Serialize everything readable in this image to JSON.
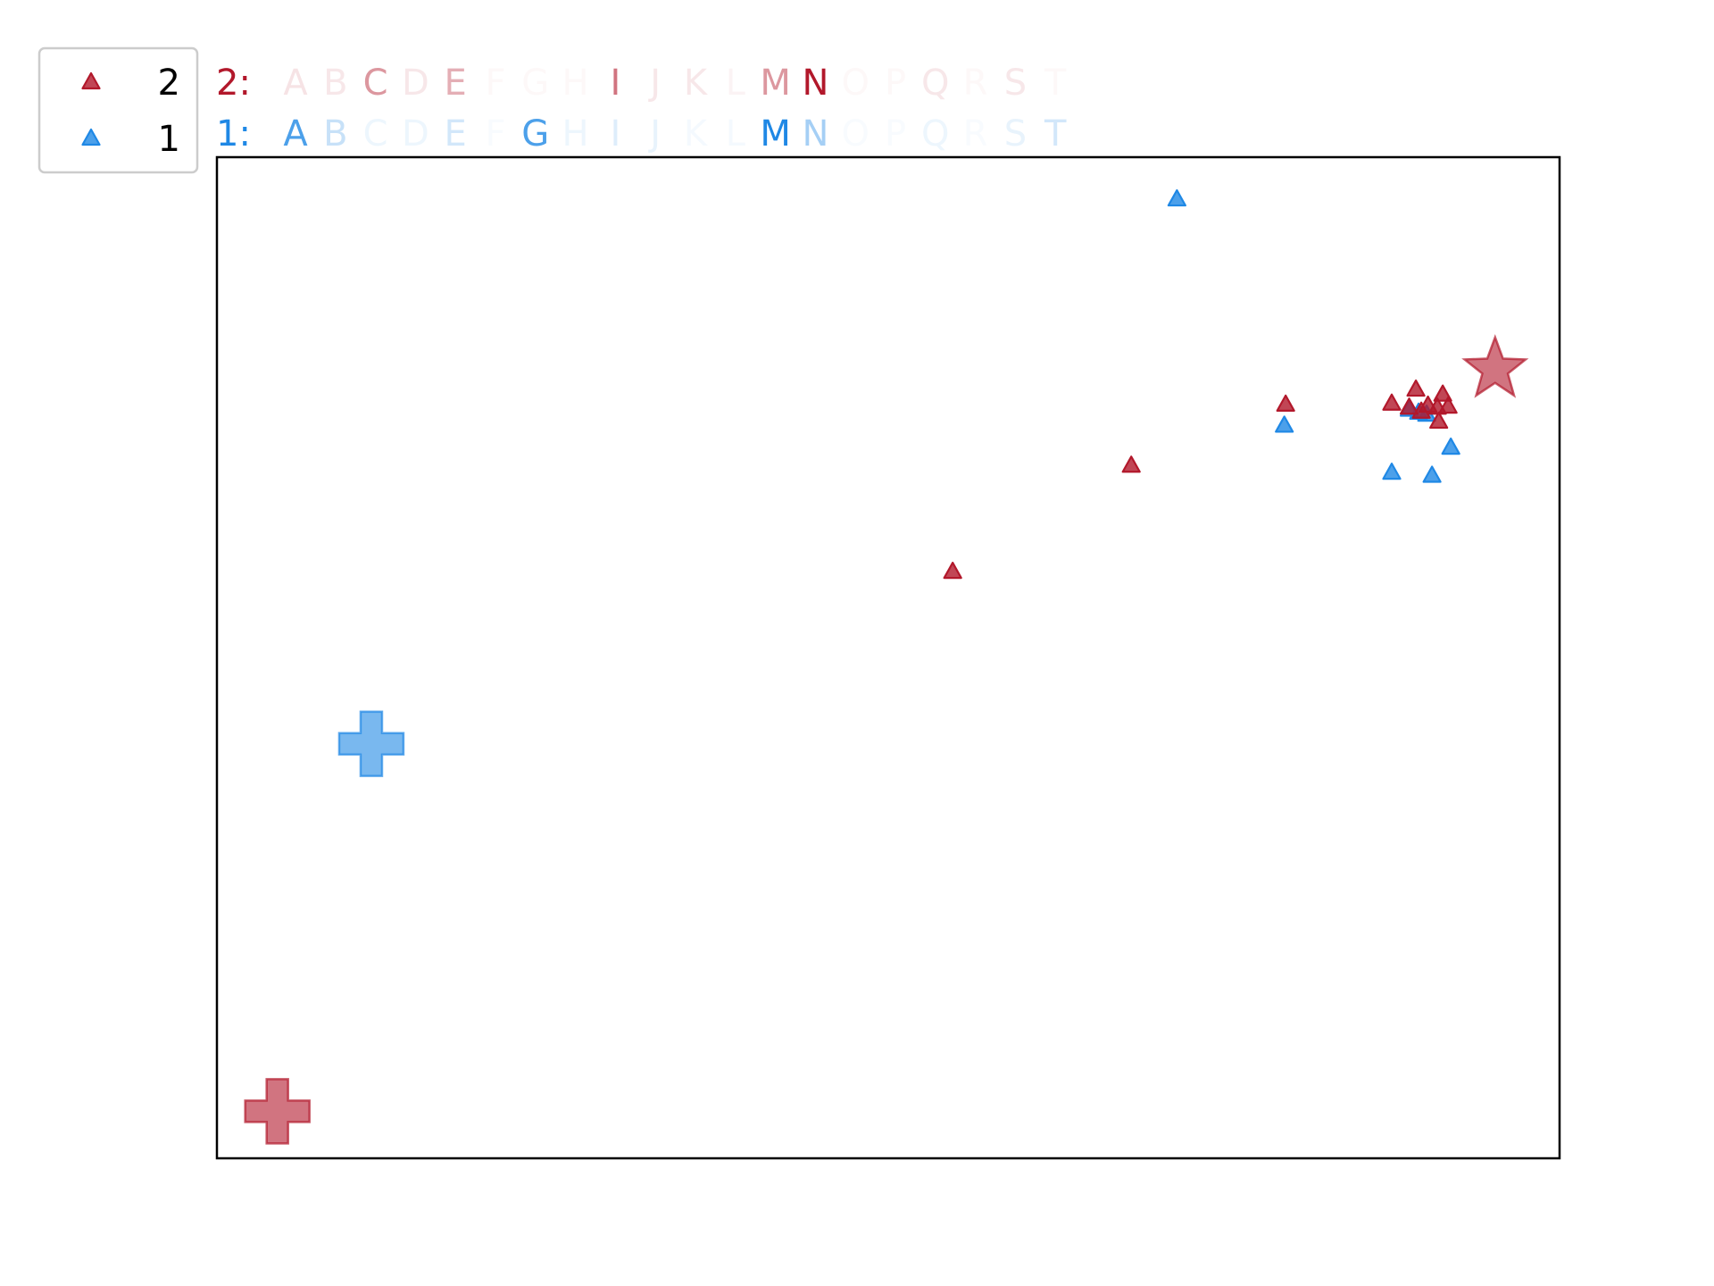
{
  "chart_data": {
    "type": "scatter",
    "title": "",
    "xlabel": "",
    "ylabel": "",
    "xlim": [
      0,
      100
    ],
    "ylim": [
      0,
      100
    ],
    "grid": false,
    "axis_ticks": false,
    "legend_placement": "top-left, outside axes",
    "letters": [
      "A",
      "B",
      "C",
      "D",
      "E",
      "F",
      "G",
      "H",
      "I",
      "J",
      "K",
      "L",
      "M",
      "N",
      "O",
      "P",
      "Q",
      "R",
      "S",
      "T"
    ],
    "series": [
      {
        "name": "2",
        "prefix": "2:",
        "color": "#b2182b",
        "marker": "triangle",
        "letter_alpha": [
          0.12,
          0.1,
          0.45,
          0.1,
          0.35,
          0.03,
          0.03,
          0.03,
          0.6,
          0.1,
          0.1,
          0.05,
          0.45,
          1.0,
          0.03,
          0.03,
          0.1,
          0.03,
          0.1,
          0.03
        ],
        "points": [
          {
            "x": 54.8,
            "y": 58.6
          },
          {
            "x": 68.1,
            "y": 69.2
          },
          {
            "x": 79.6,
            "y": 75.3
          },
          {
            "x": 87.5,
            "y": 75.4
          },
          {
            "x": 88.8,
            "y": 75.0
          },
          {
            "x": 89.3,
            "y": 76.8
          },
          {
            "x": 89.7,
            "y": 74.6
          },
          {
            "x": 90.2,
            "y": 75.2
          },
          {
            "x": 90.9,
            "y": 75.0
          },
          {
            "x": 91.0,
            "y": 73.6
          },
          {
            "x": 91.3,
            "y": 76.3
          },
          {
            "x": 91.7,
            "y": 75.1
          }
        ],
        "start": {
          "x": 4.5,
          "y": 4.7,
          "marker": "plus"
        },
        "end": {
          "x": 95.2,
          "y": 78.8,
          "marker": "star"
        }
      },
      {
        "name": "1",
        "prefix": "1:",
        "color": "#1f88e5",
        "letter_alpha": [
          0.8,
          0.25,
          0.08,
          0.08,
          0.2,
          0.03,
          0.8,
          0.08,
          0.15,
          0.1,
          0.05,
          0.05,
          1.0,
          0.4,
          0.03,
          0.03,
          0.08,
          0.03,
          0.1,
          0.2
        ],
        "marker": "triangle",
        "points": [
          {
            "x": 71.5,
            "y": 95.8
          },
          {
            "x": 79.5,
            "y": 73.2
          },
          {
            "x": 87.5,
            "y": 68.5
          },
          {
            "x": 88.8,
            "y": 74.8
          },
          {
            "x": 89.5,
            "y": 74.5
          },
          {
            "x": 90.1,
            "y": 74.3
          },
          {
            "x": 90.5,
            "y": 68.2
          },
          {
            "x": 91.9,
            "y": 71.0
          }
        ],
        "start": {
          "x": 11.5,
          "y": 41.4,
          "marker": "plus"
        }
      }
    ]
  }
}
